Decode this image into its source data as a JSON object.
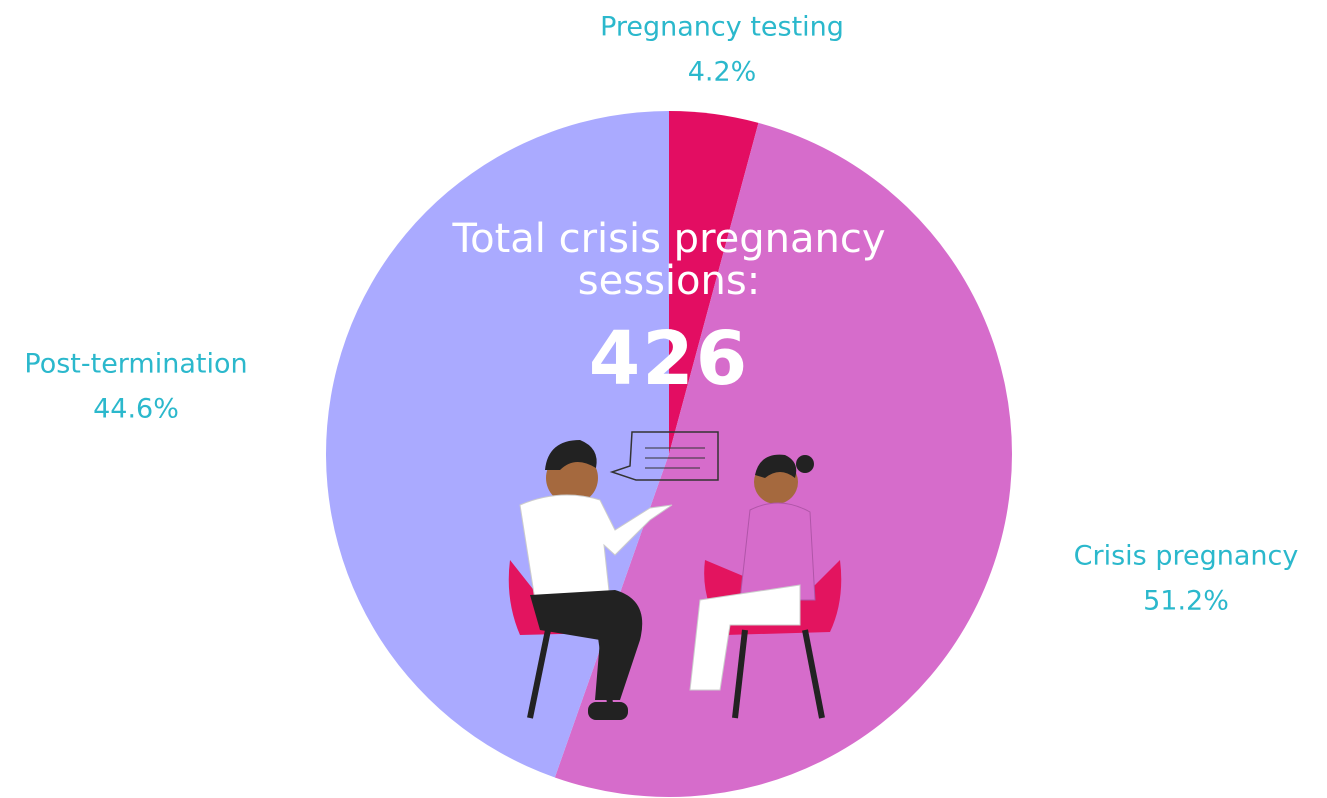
{
  "chart_data": {
    "type": "pie",
    "categories": [
      "Pregnancy testing",
      "Crisis pregnancy",
      "Post-termination"
    ],
    "values": [
      4.2,
      51.2,
      44.6
    ],
    "value_labels": [
      "4.2%",
      "51.2%",
      "44.6%"
    ],
    "colors": [
      "#e30d62",
      "#d66ccb",
      "#aaaaff"
    ],
    "center_title": "Total crisis pregnancy sessions:",
    "total": 426
  }
}
